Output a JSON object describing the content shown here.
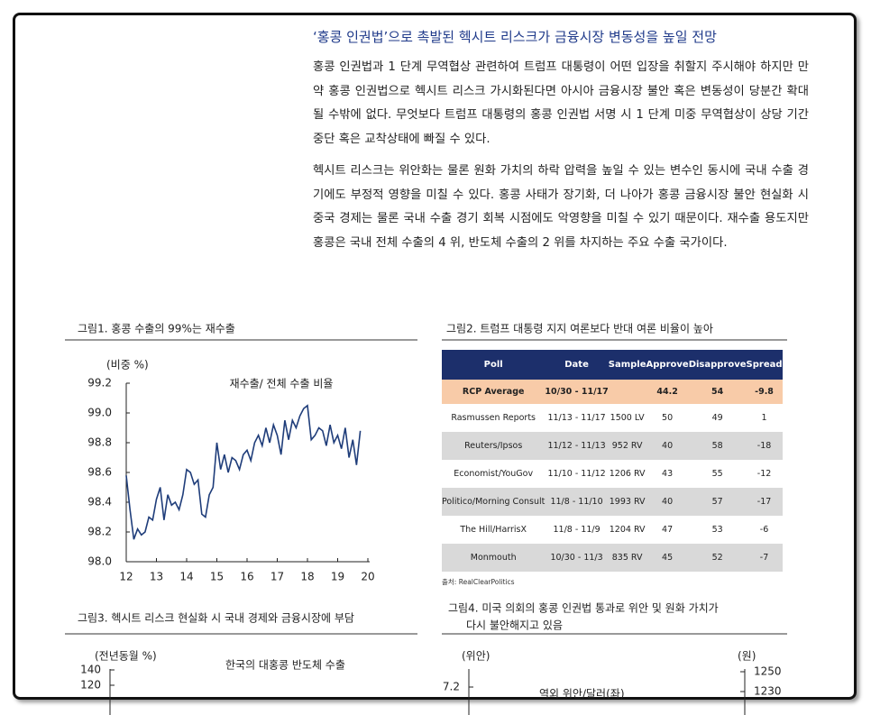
{
  "heading": "‘홍콩 인권법’으로 촉발된 헥시트 리스크가 금융시장 변동성을 높일 전망",
  "paragraphs": [
    "홍콩 인권법과 1 단계 무역협상 관련하여 트럼프 대통령이 어떤 입장을 취할지 주시해야 하지만 만약 홍콩 인권법으로 헥시트 리스크 가시화된다면 아시아 금융시장 불안 혹은 변동성이 당분간 확대될 수밖에 없다. 무엇보다 트럼프 대통령의 홍콩 인권법 서명 시 1 단계 미중 무역협상이 상당 기간 중단 혹은 교착상태에 빠질 수 있다.",
    "헥시트 리스크는 위안화는 물론 원화 가치의 하락 압력을 높일 수 있는 변수인 동시에 국내 수출 경기에도 부정적 영향을 미칠 수 있다. 홍콩 사태가 장기화, 더 나아가 홍콩 금융시장 불안 현실화 시 중국 경제는 물론 국내 수출 경기 회복 시점에도 악영향을 미칠 수 있기 때문이다. 재수출 용도지만 홍콩은 국내 전체 수출의 4 위, 반도체 수출의 2 위를 차지하는 주요 수출 국가이다."
  ],
  "table": {
    "title": "그림2. 트럼프 대통령 지지 여론보다 반대 여론 비율이 높아",
    "header": [
      "Poll",
      "Date",
      "Sample",
      "Approve",
      "Disapprove",
      "Spread"
    ],
    "rows": [
      [
        "RCP Average",
        "10/30 - 11/17",
        "",
        "44.2",
        "54",
        "-9.8"
      ],
      [
        "Rasmussen Reports",
        "11/13 - 11/17",
        "1500 LV",
        "50",
        "49",
        "1"
      ],
      [
        "Reuters/Ipsos",
        "11/12 - 11/13",
        "952 RV",
        "40",
        "58",
        "-18"
      ],
      [
        "Economist/YouGov",
        "11/10 - 11/12",
        "1206 RV",
        "43",
        "55",
        "-12"
      ],
      [
        "Politico/Morning Consult",
        "11/8 - 11/10",
        "1993 RV",
        "40",
        "57",
        "-17"
      ],
      [
        "The Hill/HarrisX",
        "11/8 - 11/9",
        "1204 RV",
        "47",
        "53",
        "-6"
      ],
      [
        "Monmouth",
        "10/30 - 11/3",
        "835 RV",
        "45",
        "52",
        "-7"
      ]
    ],
    "source": "출처: RealClearPolitics"
  },
  "chart_data": [
    {
      "type": "line",
      "title": "그림1. 홍콩 수출의 99%는 재수출",
      "y_label": "(비중 %)",
      "xlim": [
        12,
        20
      ],
      "xticks": [
        12,
        13,
        14,
        15,
        16,
        17,
        18,
        19,
        20
      ],
      "ylim": [
        98,
        99.2
      ],
      "yticks": [
        {
          "value": 98,
          "label": "98.0"
        },
        98.2,
        98.4,
        98.6,
        98.8,
        {
          "value": 99,
          "label": "99.0"
        },
        99.2
      ],
      "x": [
        12,
        12.125,
        12.25,
        12.375,
        12.5,
        12.625,
        12.75,
        12.875,
        13,
        13.125,
        13.25,
        13.375,
        13.5,
        13.625,
        13.75,
        13.875,
        14,
        14.125,
        14.25,
        14.375,
        14.5,
        14.625,
        14.75,
        14.875,
        15,
        15.125,
        15.25,
        15.375,
        15.5,
        15.625,
        15.75,
        15.875,
        16,
        16.125,
        16.25,
        16.375,
        16.5,
        16.625,
        16.75,
        16.875,
        17,
        17.125,
        17.25,
        17.375,
        17.5,
        17.625,
        17.75,
        17.875,
        18,
        18.125,
        18.25,
        18.375,
        18.5,
        18.625,
        18.75,
        18.875,
        19,
        19.125,
        19.25,
        19.375,
        19.5,
        19.625,
        19.75
      ],
      "series": [
        {
          "name": "재수출/ 전체 수출 비율",
          "color": "#1f3d7a",
          "values": [
            98.58,
            98.35,
            98.15,
            98.22,
            98.18,
            98.2,
            98.3,
            98.28,
            98.42,
            98.5,
            98.28,
            98.45,
            98.38,
            98.4,
            98.35,
            98.45,
            98.62,
            98.6,
            98.52,
            98.55,
            98.32,
            98.3,
            98.45,
            98.5,
            98.8,
            98.62,
            98.72,
            98.6,
            98.7,
            98.68,
            98.62,
            98.72,
            98.75,
            98.68,
            98.8,
            98.85,
            98.78,
            98.9,
            98.8,
            98.92,
            98.85,
            98.72,
            98.95,
            98.82,
            98.95,
            98.9,
            98.98,
            99.03,
            99.05,
            98.82,
            98.85,
            98.9,
            98.88,
            98.78,
            98.92,
            98.8,
            98.85,
            98.76,
            98.9,
            98.7,
            98.82,
            98.65,
            98.88
          ]
        }
      ]
    },
    {
      "type": "partial",
      "title": [
        "그림3. 헥시트 리스크 현실화 시 국내 경제와 금융시장에 부담"
      ],
      "y_label": "(전년동월 %)",
      "yticks": [
        140,
        120
      ],
      "series": [
        {
          "name": "한국의 대홍콩 반도체 수출",
          "color": "#f08a4b"
        }
      ]
    },
    {
      "type": "partial",
      "title": [
        "그림4. 미국 의회의 홍콩 인권법 통과로 위안 및 원화 가치가",
        "다시 불안해지고 있음"
      ],
      "y_label": "(위안)",
      "yticks": [
        7.2
      ],
      "y2_label": "(원)",
      "y2ticks": [
        1250,
        1230
      ],
      "series": [
        {
          "name": "역외 위안/달러(좌)",
          "color": "#f08a4b"
        }
      ]
    }
  ]
}
